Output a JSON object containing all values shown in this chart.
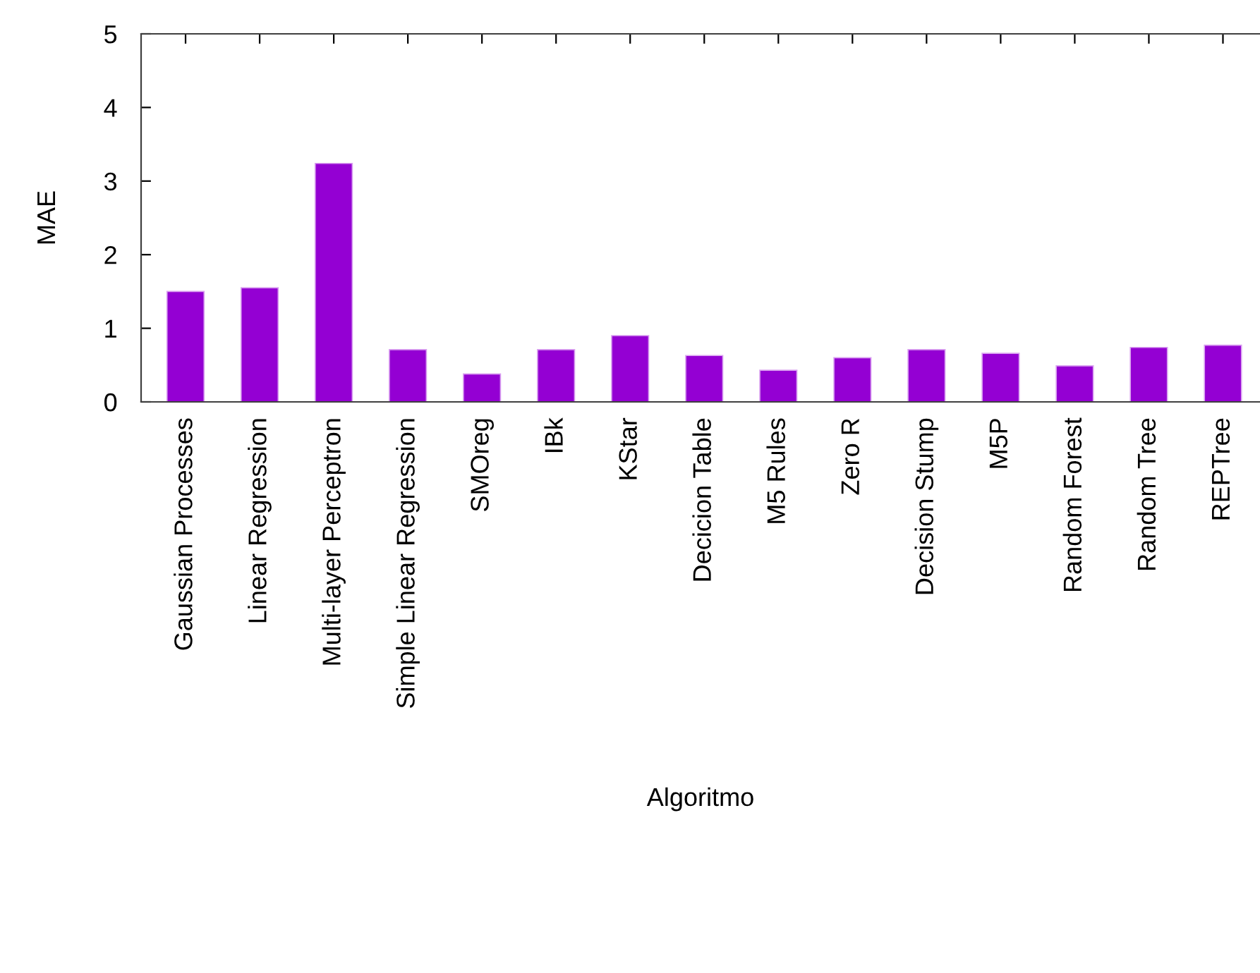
{
  "chart_data": {
    "type": "bar",
    "xlabel": "Algoritmo",
    "ylabel": "MAE",
    "categories": [
      "Gaussian Processes",
      "Linear Regression",
      "Multi-layer Perceptron",
      "Simple Linear Regression",
      "SMOreg",
      "IBk",
      "KStar",
      "Decicion Table",
      "M5 Rules",
      "Zero R",
      "Decision Stump",
      "M5P",
      "Random Forest",
      "Random Tree",
      "REPTree"
    ],
    "values": [
      1.5,
      1.55,
      3.24,
      0.71,
      0.38,
      0.71,
      0.9,
      0.63,
      0.43,
      0.6,
      0.71,
      0.66,
      0.49,
      0.74,
      0.77
    ],
    "color": "#9400d3",
    "ylim": [
      0,
      5
    ],
    "yticks": [
      0,
      1,
      2,
      3,
      4,
      5
    ],
    "grid": false,
    "legend": false
  }
}
